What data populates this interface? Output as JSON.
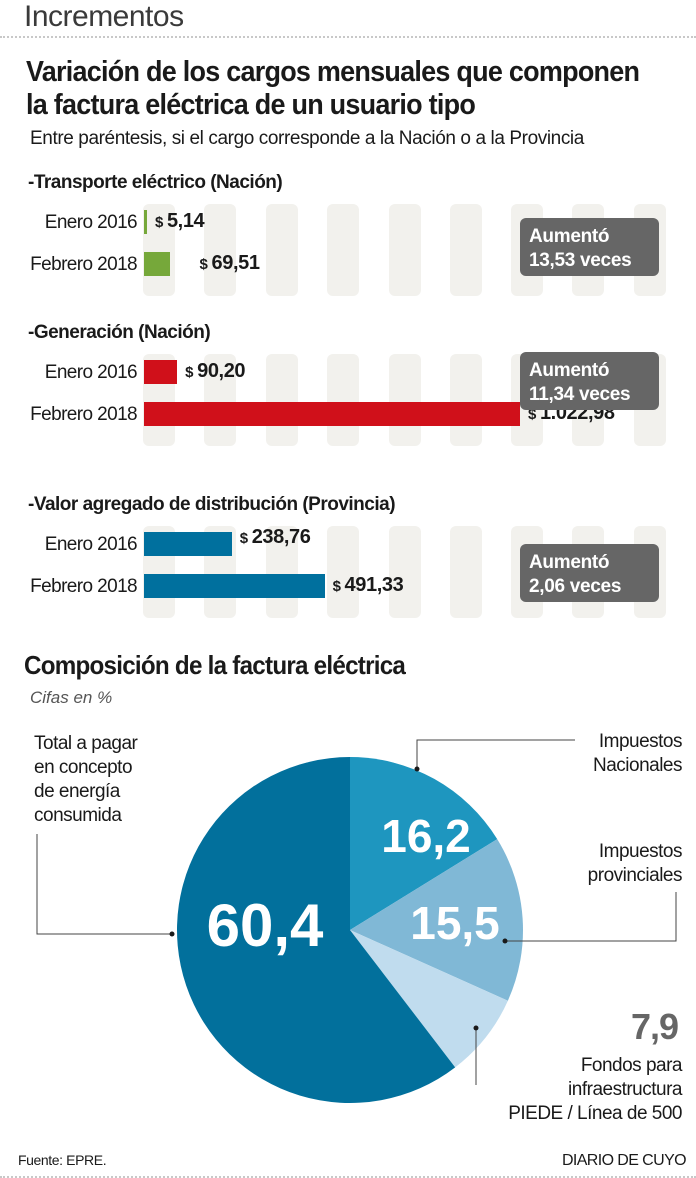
{
  "header": {
    "section_title": "Incrementos"
  },
  "headline": {
    "line1": "Variación de los cargos mensuales que componen",
    "line2": "la factura eléctrica de un usuario tipo"
  },
  "subtitle": "Entre paréntesis, si el cargo corresponde a la Nación o a la Provincia",
  "pie_section": {
    "title": "Composición de la factura eléctrica",
    "subtitle": "Cifas en %"
  },
  "footer": {
    "source": "Fuente: EPRE.",
    "publisher": "DIARIO DE CUYO"
  },
  "chart_data": [
    {
      "type": "bar",
      "orientation": "horizontal",
      "title": "Variación de los cargos mensuales que componen la factura eléctrica de un usuario tipo",
      "currency_symbol": "$",
      "categories": [
        "Enero 2016",
        "Febrero 2018"
      ],
      "xlim": [
        0,
        1022.98
      ],
      "grid": "vertical background columns",
      "groups": [
        {
          "title": "-Transporte eléctrico (Nación)",
          "color": "#76a83a",
          "values": [
            5.14,
            69.51
          ],
          "value_labels": [
            "5,14",
            "69,51"
          ],
          "badge": {
            "line1": "Aumentó",
            "line2": "13,53 veces"
          }
        },
        {
          "title": "-Generación (Nación)",
          "color": "#d0101a",
          "values": [
            90.2,
            1022.98
          ],
          "value_labels": [
            "90,20",
            "1.022,98"
          ],
          "badge": {
            "line1": "Aumentó",
            "line2": "11,34 veces"
          }
        },
        {
          "title": "-Valor agregado de distribución (Provincia)",
          "color": "#00709e",
          "values": [
            238.76,
            491.33
          ],
          "value_labels": [
            "238,76",
            "491,33"
          ],
          "badge": {
            "line1": "Aumentó",
            "line2": "2,06 veces"
          }
        }
      ]
    },
    {
      "type": "pie",
      "title": "Composición de la factura eléctrica",
      "subtitle": "Cifas en %",
      "slices": [
        {
          "label": "Impuestos Nacionales",
          "label_lines": [
            "Impuestos",
            "Nacionales"
          ],
          "value": 16.2,
          "value_label": "16,2",
          "color": "#1e96bf"
        },
        {
          "label": "Impuestos provinciales",
          "label_lines": [
            "Impuestos",
            "provinciales"
          ],
          "value": 15.5,
          "value_label": "15,5",
          "color": "#80b8d6"
        },
        {
          "label": "Fondos para infraestructura PIEDE / Línea de 500",
          "label_lines": [
            "Fondos para",
            "infraestructura",
            "PIEDE / Línea de 500"
          ],
          "value": 7.9,
          "value_label": "7,9",
          "color": "#c0dcee"
        },
        {
          "label": "Total a pagar en concepto de energía consumida",
          "label_lines": [
            "Total a pagar",
            "en concepto",
            "de energía",
            "consumida"
          ],
          "value": 60.4,
          "value_label": "60,4",
          "color": "#02709c"
        }
      ]
    }
  ]
}
